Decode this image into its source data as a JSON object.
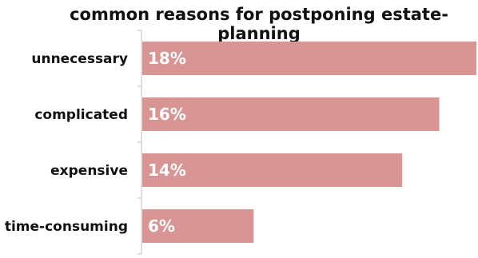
{
  "chart_data": {
    "type": "bar",
    "orientation": "horizontal",
    "title": "common reasons for postponing estate-planning",
    "categories": [
      "unnecessary",
      "complicated",
      "expensive",
      "time-consuming"
    ],
    "values": [
      18,
      16,
      14,
      6
    ],
    "value_labels": [
      "18%",
      "16%",
      "14%",
      "6%"
    ],
    "xlabel": "",
    "ylabel": "",
    "xlim": [
      0,
      18
    ],
    "grid": false,
    "bar_color": "#d99593",
    "label_color": "#ffffff"
  }
}
